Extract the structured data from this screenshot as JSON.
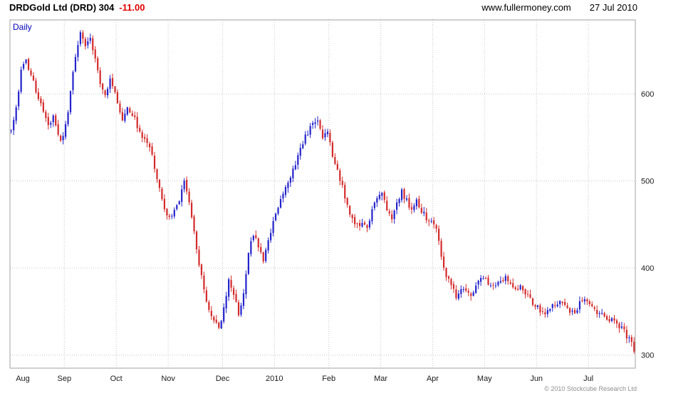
{
  "header": {
    "title": "DRDGold Ltd (DRD) 304",
    "change": "-11.00",
    "website": "www.fullermoney.com",
    "date": "27 Jul 2010"
  },
  "chart": {
    "frequency_label": "Daily",
    "copyright": "© 2010 Stockcube Research Ltd"
  },
  "chart_data": {
    "type": "candlestick",
    "title": "DRDGold Ltd (DRD) daily candlestick chart",
    "instrument": "DRDGold Ltd (DRD)",
    "frequency": "Daily",
    "last_price": 304,
    "change": -11.0,
    "ylim": [
      285,
      685
    ],
    "yticks": [
      300,
      400,
      500,
      600
    ],
    "grid": true,
    "total_days": 253,
    "x_axis": [
      {
        "label": "Aug",
        "day": 0
      },
      {
        "label": "Sep",
        "day": 22
      },
      {
        "label": "Oct",
        "day": 43
      },
      {
        "label": "Nov",
        "day": 64
      },
      {
        "label": "Dec",
        "day": 86
      },
      {
        "label": "2010",
        "day": 107
      },
      {
        "label": "Feb",
        "day": 129
      },
      {
        "label": "Mar",
        "day": 150
      },
      {
        "label": "Apr",
        "day": 171
      },
      {
        "label": "May",
        "day": 192
      },
      {
        "label": "Jun",
        "day": 213
      },
      {
        "label": "Jul",
        "day": 234
      }
    ],
    "colors": {
      "up": "#2323cc",
      "down": "#d42a2a",
      "grid": "#c6c6c6",
      "frame": "#a0a0a0",
      "label": "#1a1a1a",
      "frequency": "#0000bb"
    },
    "close_waypoints": [
      [
        0,
        558
      ],
      [
        2,
        585
      ],
      [
        4,
        625
      ],
      [
        6,
        638
      ],
      [
        9,
        612
      ],
      [
        12,
        590
      ],
      [
        15,
        562
      ],
      [
        17,
        572
      ],
      [
        20,
        545
      ],
      [
        22,
        562
      ],
      [
        24,
        600
      ],
      [
        26,
        645
      ],
      [
        28,
        672
      ],
      [
        30,
        652
      ],
      [
        32,
        666
      ],
      [
        34,
        638
      ],
      [
        36,
        614
      ],
      [
        38,
        600
      ],
      [
        40,
        618
      ],
      [
        43,
        592
      ],
      [
        45,
        568
      ],
      [
        47,
        585
      ],
      [
        50,
        570
      ],
      [
        53,
        550
      ],
      [
        55,
        545
      ],
      [
        57,
        528
      ],
      [
        59,
        505
      ],
      [
        62,
        468
      ],
      [
        64,
        456
      ],
      [
        66,
        470
      ],
      [
        68,
        478
      ],
      [
        70,
        497
      ],
      [
        72,
        476
      ],
      [
        74,
        443
      ],
      [
        76,
        406
      ],
      [
        78,
        376
      ],
      [
        80,
        350
      ],
      [
        82,
        337
      ],
      [
        84,
        333
      ],
      [
        86,
        352
      ],
      [
        88,
        386
      ],
      [
        90,
        371
      ],
      [
        92,
        347
      ],
      [
        94,
        372
      ],
      [
        96,
        418
      ],
      [
        98,
        438
      ],
      [
        100,
        427
      ],
      [
        102,
        411
      ],
      [
        104,
        433
      ],
      [
        106,
        452
      ],
      [
        108,
        470
      ],
      [
        110,
        488
      ],
      [
        112,
        500
      ],
      [
        114,
        512
      ],
      [
        116,
        530
      ],
      [
        118,
        545
      ],
      [
        120,
        556
      ],
      [
        122,
        565
      ],
      [
        124,
        570
      ],
      [
        126,
        552
      ],
      [
        128,
        558
      ],
      [
        130,
        528
      ],
      [
        132,
        510
      ],
      [
        134,
        494
      ],
      [
        136,
        472
      ],
      [
        138,
        455
      ],
      [
        140,
        448
      ],
      [
        142,
        452
      ],
      [
        144,
        446
      ],
      [
        146,
        466
      ],
      [
        148,
        478
      ],
      [
        150,
        487
      ],
      [
        152,
        468
      ],
      [
        154,
        458
      ],
      [
        156,
        472
      ],
      [
        158,
        488
      ],
      [
        160,
        477
      ],
      [
        162,
        467
      ],
      [
        164,
        477
      ],
      [
        166,
        466
      ],
      [
        168,
        457
      ],
      [
        170,
        452
      ],
      [
        172,
        444
      ],
      [
        174,
        415
      ],
      [
        176,
        392
      ],
      [
        178,
        378
      ],
      [
        180,
        368
      ],
      [
        182,
        374
      ],
      [
        184,
        371
      ],
      [
        186,
        367
      ],
      [
        188,
        380
      ],
      [
        190,
        387
      ],
      [
        192,
        385
      ],
      [
        194,
        377
      ],
      [
        196,
        381
      ],
      [
        198,
        387
      ],
      [
        200,
        390
      ],
      [
        202,
        383
      ],
      [
        204,
        375
      ],
      [
        206,
        378
      ],
      [
        208,
        371
      ],
      [
        210,
        364
      ],
      [
        212,
        357
      ],
      [
        214,
        352
      ],
      [
        216,
        347
      ],
      [
        218,
        354
      ],
      [
        220,
        357
      ],
      [
        222,
        361
      ],
      [
        224,
        355
      ],
      [
        226,
        349
      ],
      [
        228,
        347
      ],
      [
        230,
        360
      ],
      [
        232,
        367
      ],
      [
        234,
        359
      ],
      [
        236,
        351
      ],
      [
        238,
        347
      ],
      [
        240,
        344
      ],
      [
        242,
        339
      ],
      [
        244,
        341
      ],
      [
        246,
        334
      ],
      [
        248,
        327
      ],
      [
        250,
        317
      ],
      [
        251,
        315
      ],
      [
        252,
        304
      ]
    ]
  }
}
